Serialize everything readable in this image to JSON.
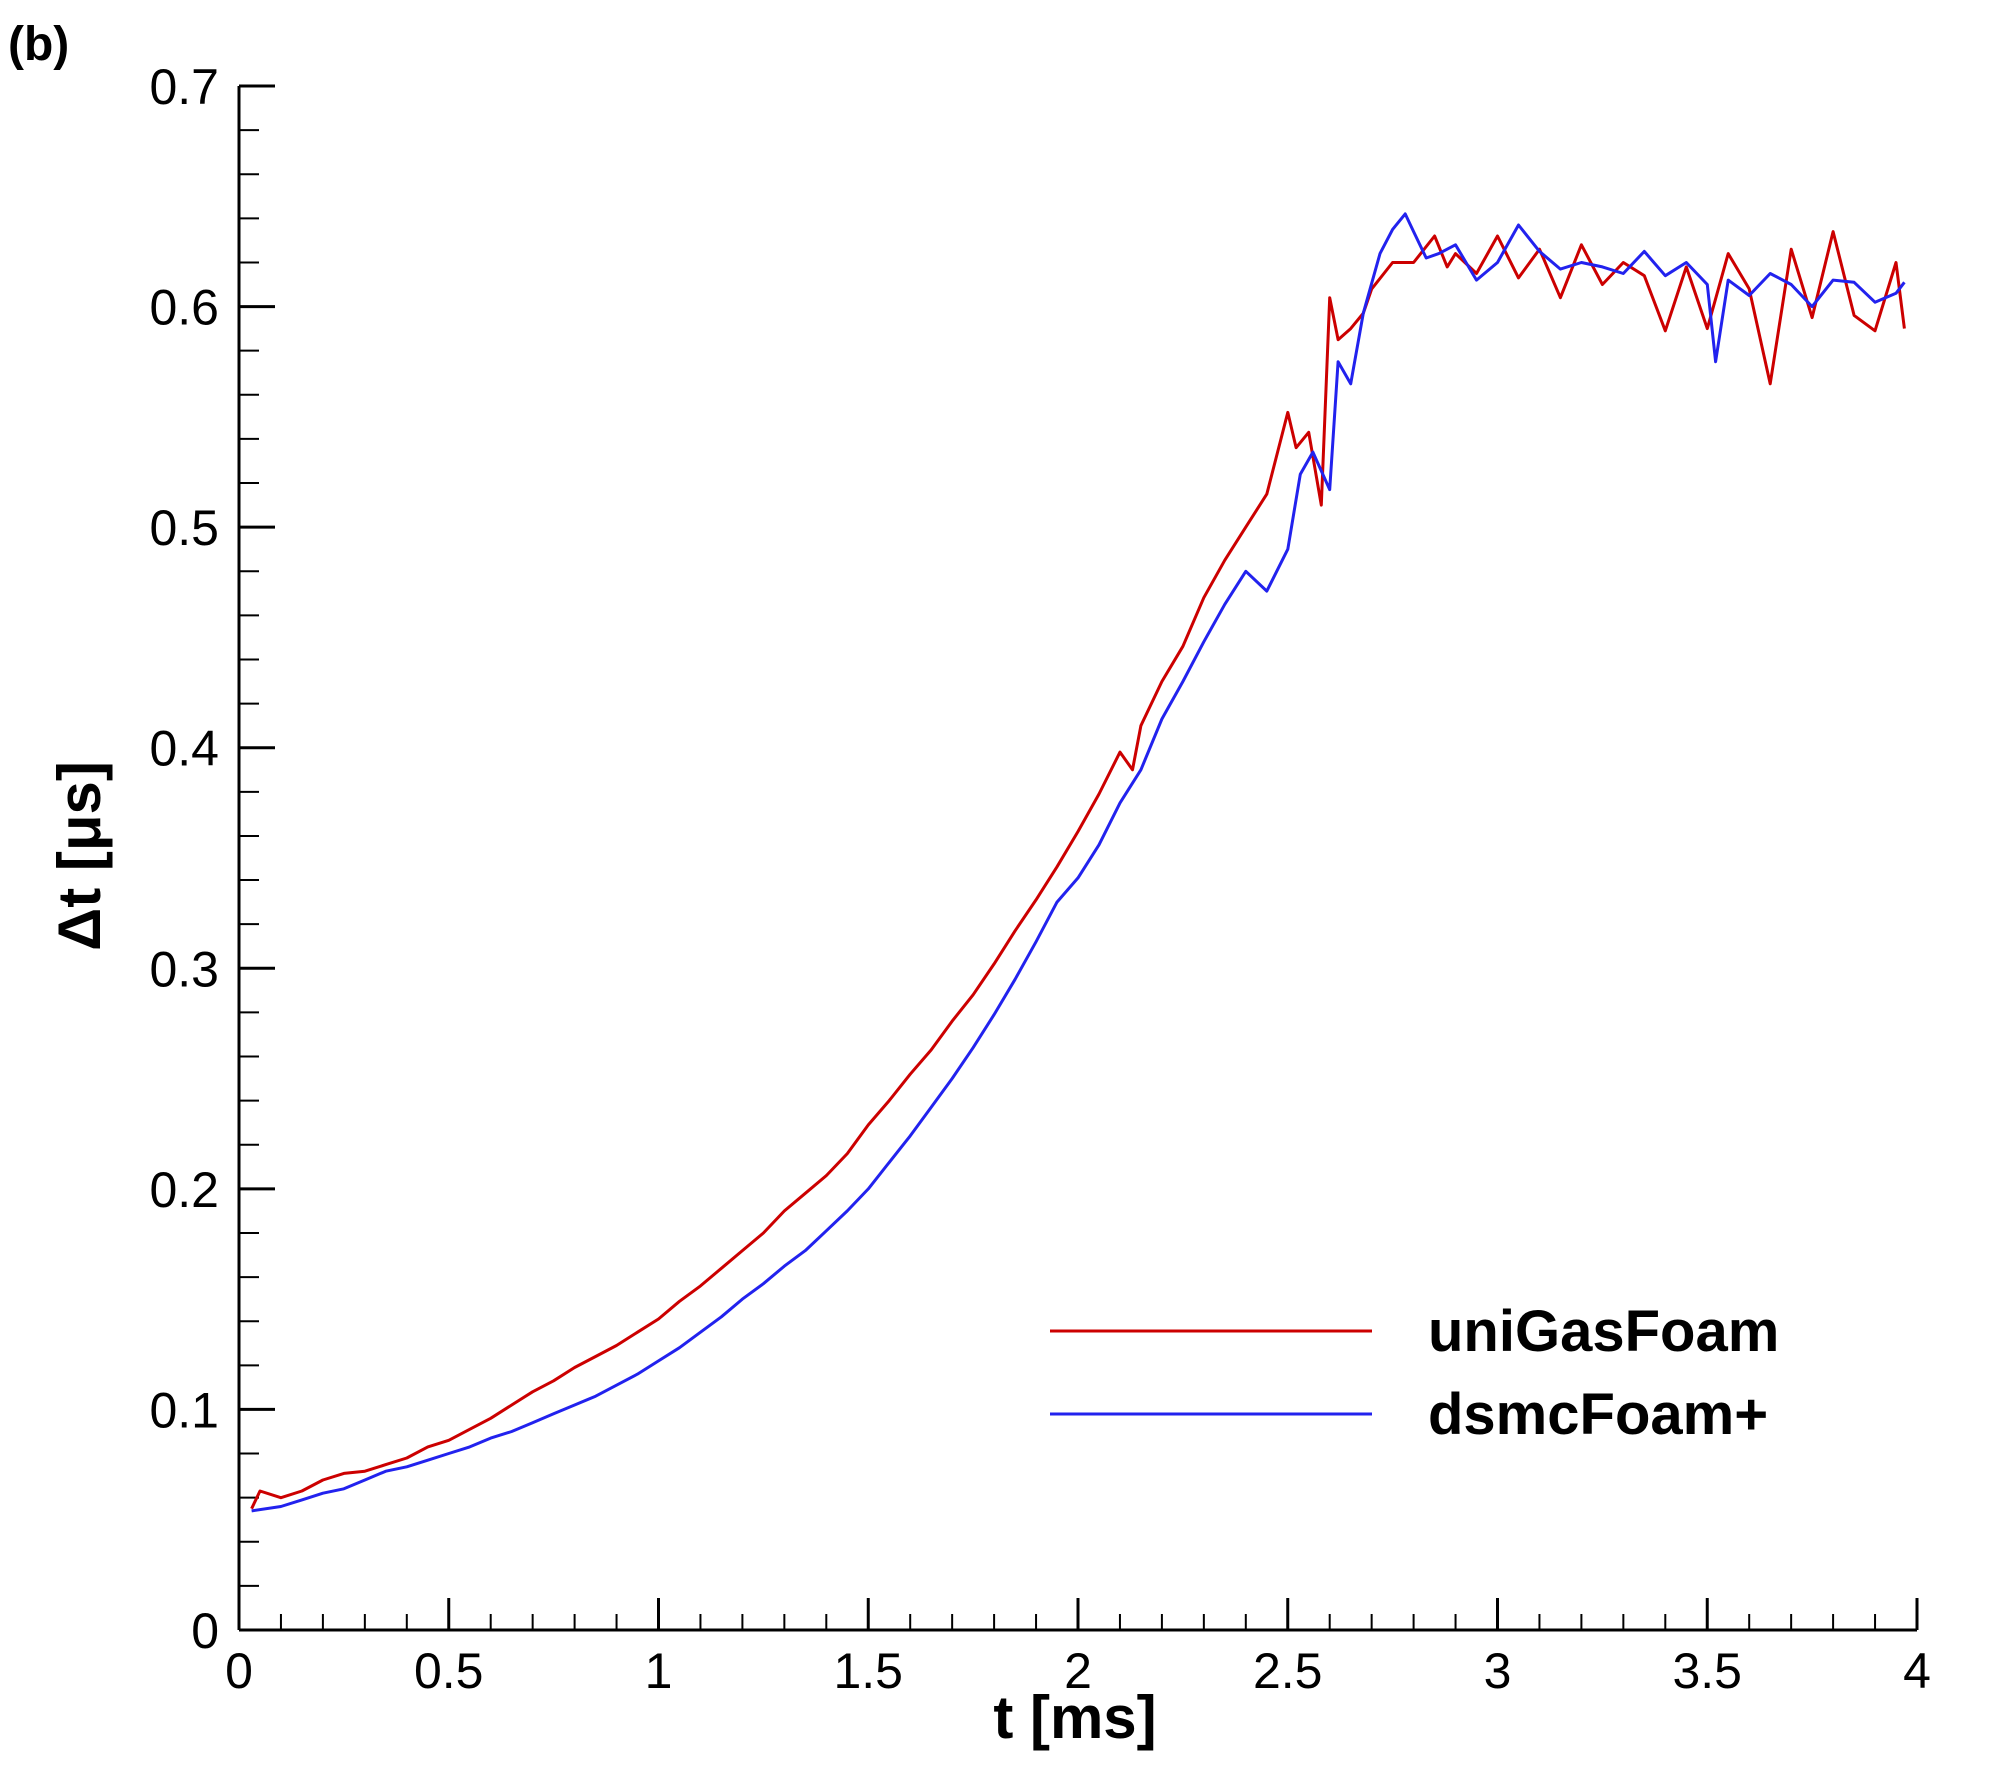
{
  "panel_label": "(b)",
  "colors": {
    "uniGasFoam": "#cc0000",
    "dsmcFoam": "#2222ee",
    "axis": "#000000"
  },
  "chart_data": {
    "type": "line",
    "title": "",
    "xlabel": "t [ms]",
    "ylabel": "Δt [μs]",
    "xlim": [
      0,
      4
    ],
    "ylim": [
      0,
      0.7
    ],
    "xticks": [
      0,
      0.5,
      1,
      1.5,
      2,
      2.5,
      3,
      3.5,
      4
    ],
    "xtick_labels": [
      "0",
      "0.5",
      "1",
      "1.5",
      "2",
      "2.5",
      "3",
      "3.5",
      "4"
    ],
    "yticks": [
      0,
      0.1,
      0.2,
      0.3,
      0.4,
      0.5,
      0.6,
      0.7
    ],
    "ytick_labels": [
      "0",
      "0.1",
      "0.2",
      "0.3",
      "0.4",
      "0.5",
      "0.6",
      "0.7"
    ],
    "x_minor_step": 0.1,
    "y_minor_step": 0.02,
    "grid": false,
    "legend_position": "bottom-right",
    "series": [
      {
        "name": "uniGasFoam",
        "color": "#cc0000",
        "x": [
          0.03,
          0.05,
          0.1,
          0.15,
          0.2,
          0.25,
          0.3,
          0.35,
          0.4,
          0.45,
          0.5,
          0.55,
          0.6,
          0.65,
          0.7,
          0.75,
          0.8,
          0.85,
          0.9,
          0.95,
          1.0,
          1.05,
          1.1,
          1.15,
          1.2,
          1.25,
          1.3,
          1.35,
          1.4,
          1.45,
          1.5,
          1.55,
          1.6,
          1.65,
          1.7,
          1.75,
          1.8,
          1.85,
          1.9,
          1.95,
          2.0,
          2.05,
          2.1,
          2.13,
          2.15,
          2.2,
          2.25,
          2.3,
          2.35,
          2.4,
          2.45,
          2.5,
          2.52,
          2.55,
          2.58,
          2.6,
          2.62,
          2.65,
          2.68,
          2.7,
          2.75,
          2.8,
          2.85,
          2.88,
          2.9,
          2.95,
          3.0,
          3.05,
          3.1,
          3.15,
          3.2,
          3.25,
          3.3,
          3.35,
          3.4,
          3.45,
          3.5,
          3.55,
          3.6,
          3.65,
          3.7,
          3.75,
          3.8,
          3.85,
          3.9,
          3.95,
          3.97
        ],
        "y": [
          0.055,
          0.063,
          0.06,
          0.063,
          0.068,
          0.071,
          0.072,
          0.075,
          0.078,
          0.083,
          0.086,
          0.091,
          0.096,
          0.102,
          0.108,
          0.113,
          0.119,
          0.124,
          0.129,
          0.135,
          0.141,
          0.149,
          0.156,
          0.164,
          0.172,
          0.18,
          0.19,
          0.198,
          0.206,
          0.216,
          0.229,
          0.24,
          0.252,
          0.263,
          0.276,
          0.288,
          0.302,
          0.317,
          0.331,
          0.346,
          0.362,
          0.379,
          0.398,
          0.39,
          0.41,
          0.43,
          0.446,
          0.468,
          0.485,
          0.5,
          0.515,
          0.552,
          0.536,
          0.543,
          0.51,
          0.604,
          0.585,
          0.59,
          0.597,
          0.608,
          0.62,
          0.62,
          0.632,
          0.618,
          0.624,
          0.615,
          0.632,
          0.613,
          0.626,
          0.604,
          0.628,
          0.61,
          0.62,
          0.614,
          0.589,
          0.618,
          0.59,
          0.624,
          0.608,
          0.565,
          0.626,
          0.595,
          0.634,
          0.596,
          0.589,
          0.62,
          0.59
        ]
      },
      {
        "name": "dsmcFoam+",
        "color": "#2222ee",
        "x": [
          0.03,
          0.1,
          0.15,
          0.2,
          0.25,
          0.3,
          0.35,
          0.4,
          0.45,
          0.5,
          0.55,
          0.6,
          0.65,
          0.7,
          0.75,
          0.8,
          0.85,
          0.9,
          0.95,
          1.0,
          1.05,
          1.1,
          1.15,
          1.2,
          1.25,
          1.3,
          1.35,
          1.4,
          1.45,
          1.5,
          1.55,
          1.6,
          1.65,
          1.7,
          1.75,
          1.8,
          1.85,
          1.9,
          1.95,
          2.0,
          2.05,
          2.1,
          2.15,
          2.2,
          2.25,
          2.3,
          2.35,
          2.4,
          2.45,
          2.5,
          2.53,
          2.56,
          2.6,
          2.62,
          2.65,
          2.68,
          2.72,
          2.75,
          2.78,
          2.8,
          2.83,
          2.86,
          2.9,
          2.95,
          3.0,
          3.05,
          3.1,
          3.15,
          3.2,
          3.25,
          3.3,
          3.35,
          3.4,
          3.45,
          3.5,
          3.52,
          3.55,
          3.6,
          3.65,
          3.7,
          3.75,
          3.8,
          3.85,
          3.9,
          3.95,
          3.97
        ],
        "y": [
          0.054,
          0.056,
          0.059,
          0.062,
          0.064,
          0.068,
          0.072,
          0.074,
          0.077,
          0.08,
          0.083,
          0.087,
          0.09,
          0.094,
          0.098,
          0.102,
          0.106,
          0.111,
          0.116,
          0.122,
          0.128,
          0.135,
          0.142,
          0.15,
          0.157,
          0.165,
          0.172,
          0.181,
          0.19,
          0.2,
          0.212,
          0.224,
          0.237,
          0.25,
          0.264,
          0.279,
          0.295,
          0.312,
          0.33,
          0.341,
          0.356,
          0.375,
          0.39,
          0.413,
          0.43,
          0.448,
          0.465,
          0.48,
          0.471,
          0.49,
          0.524,
          0.534,
          0.517,
          0.575,
          0.565,
          0.597,
          0.624,
          0.635,
          0.642,
          0.634,
          0.622,
          0.624,
          0.628,
          0.612,
          0.62,
          0.637,
          0.625,
          0.617,
          0.62,
          0.618,
          0.615,
          0.625,
          0.614,
          0.62,
          0.61,
          0.575,
          0.612,
          0.605,
          0.615,
          0.61,
          0.6,
          0.612,
          0.611,
          0.602,
          0.606,
          0.611
        ]
      }
    ]
  }
}
